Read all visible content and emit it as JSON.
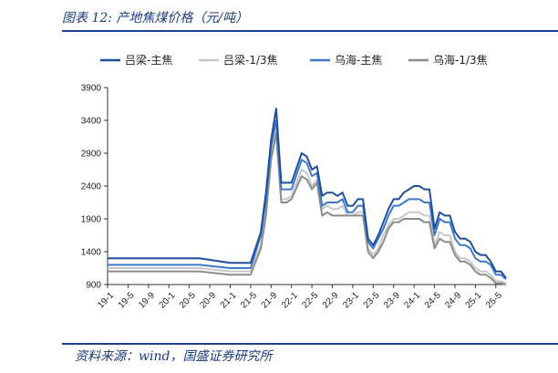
{
  "header": {
    "title": "图表 12:  产地焦煤价格（元/吨）"
  },
  "footer": {
    "source": "资料来源：wind，国盛证券研究所"
  },
  "chart_data": {
    "type": "line",
    "title": "",
    "xlabel": "",
    "ylabel": "",
    "ylim": [
      900,
      3900
    ],
    "yticks": [
      900,
      1400,
      1900,
      2400,
      2900,
      3400,
      3900
    ],
    "xlim": [
      "2019-01",
      "2025-07"
    ],
    "xtick_labels": [
      "19-1",
      "19-5",
      "19-9",
      "20-1",
      "20-5",
      "20-9",
      "21-1",
      "21-5",
      "21-9",
      "22-1",
      "22-5",
      "22-9",
      "23-1",
      "23-5",
      "23-9",
      "24-1",
      "24-5",
      "24-9",
      "25-1",
      "25-5"
    ],
    "legend": {
      "position": "top"
    },
    "grid": false,
    "series": [
      {
        "name": "吕梁-主焦",
        "color": "#1f4e9c",
        "x": [
          "2019-01",
          "2020-07",
          "2021-01",
          "2021-05",
          "2021-07",
          "2021-08",
          "2021-09",
          "2021-10",
          "2021-11",
          "2021-12",
          "2022-01",
          "2022-03",
          "2022-04",
          "2022-05",
          "2022-06",
          "2022-07",
          "2022-08",
          "2022-09",
          "2022-10",
          "2022-11",
          "2022-12",
          "2023-01",
          "2023-02",
          "2023-03",
          "2023-04",
          "2023-05",
          "2023-06",
          "2023-07",
          "2023-08",
          "2023-09",
          "2023-10",
          "2023-11",
          "2023-12",
          "2024-01",
          "2024-02",
          "2024-03",
          "2024-04",
          "2024-05",
          "2024-06",
          "2024-07",
          "2024-08",
          "2024-09",
          "2024-10",
          "2024-11",
          "2024-12",
          "2025-01",
          "2025-02",
          "2025-03",
          "2025-04",
          "2025-05",
          "2025-06",
          "2025-07"
        ],
        "values": [
          1300,
          1300,
          1230,
          1230,
          1700,
          2300,
          3100,
          3580,
          2450,
          2450,
          2450,
          2900,
          2850,
          2650,
          2700,
          2250,
          2300,
          2300,
          2250,
          2300,
          2100,
          2100,
          2200,
          2200,
          1600,
          1500,
          1650,
          1850,
          2050,
          2200,
          2200,
          2300,
          2350,
          2400,
          2400,
          2350,
          2350,
          1750,
          2000,
          1950,
          1950,
          1700,
          1600,
          1600,
          1550,
          1400,
          1350,
          1350,
          1250,
          1100,
          1100,
          1000
        ]
      },
      {
        "name": "吕梁-1/3焦",
        "color": "#c8c8c8",
        "x": [
          "2019-01",
          "2020-07",
          "2021-01",
          "2021-05",
          "2021-07",
          "2021-08",
          "2021-09",
          "2021-10",
          "2021-11",
          "2021-12",
          "2022-01",
          "2022-03",
          "2022-04",
          "2022-05",
          "2022-06",
          "2022-07",
          "2022-08",
          "2022-09",
          "2022-10",
          "2022-11",
          "2022-12",
          "2023-01",
          "2023-02",
          "2023-03",
          "2023-04",
          "2023-05",
          "2023-06",
          "2023-07",
          "2023-08",
          "2023-09",
          "2023-10",
          "2023-11",
          "2023-12",
          "2024-01",
          "2024-02",
          "2024-03",
          "2024-04",
          "2024-05",
          "2024-06",
          "2024-07",
          "2024-08",
          "2024-09",
          "2024-10",
          "2024-11",
          "2024-12",
          "2025-01",
          "2025-02",
          "2025-03",
          "2025-04",
          "2025-05",
          "2025-06",
          "2025-07"
        ],
        "values": [
          1150,
          1150,
          1100,
          1100,
          1500,
          2000,
          2900,
          3350,
          2200,
          2200,
          2250,
          2650,
          2600,
          2400,
          2500,
          2050,
          2100,
          2050,
          2050,
          2100,
          1950,
          1950,
          2000,
          2000,
          1450,
          1350,
          1450,
          1650,
          1800,
          1900,
          1900,
          1950,
          2000,
          2000,
          2000,
          1950,
          1950,
          1500,
          1700,
          1650,
          1650,
          1400,
          1300,
          1300,
          1250,
          1150,
          1100,
          1100,
          1050,
          950,
          950,
          920
        ]
      },
      {
        "name": "乌海-主焦",
        "color": "#3e79c8",
        "x": [
          "2019-01",
          "2020-07",
          "2021-01",
          "2021-05",
          "2021-07",
          "2021-08",
          "2021-09",
          "2021-10",
          "2021-11",
          "2021-12",
          "2022-01",
          "2022-03",
          "2022-04",
          "2022-05",
          "2022-06",
          "2022-07",
          "2022-08",
          "2022-09",
          "2022-10",
          "2022-11",
          "2022-12",
          "2023-01",
          "2023-02",
          "2023-03",
          "2023-04",
          "2023-05",
          "2023-06",
          "2023-07",
          "2023-08",
          "2023-09",
          "2023-10",
          "2023-11",
          "2023-12",
          "2024-01",
          "2024-02",
          "2024-03",
          "2024-04",
          "2024-05",
          "2024-06",
          "2024-07",
          "2024-08",
          "2024-09",
          "2024-10",
          "2024-11",
          "2024-12",
          "2025-01",
          "2025-02",
          "2025-03",
          "2025-04",
          "2025-05",
          "2025-06",
          "2025-07"
        ],
        "values": [
          1200,
          1200,
          1150,
          1150,
          1650,
          2200,
          3000,
          3400,
          2350,
          2350,
          2350,
          2800,
          2750,
          2550,
          2600,
          2100,
          2150,
          2150,
          2150,
          2200,
          2000,
          2000,
          2100,
          2100,
          1550,
          1450,
          1600,
          1750,
          1950,
          2100,
          2100,
          2150,
          2200,
          2200,
          2200,
          2150,
          2150,
          1650,
          1900,
          1850,
          1850,
          1600,
          1500,
          1500,
          1450,
          1300,
          1250,
          1250,
          1200,
          1050,
          1050,
          980
        ]
      },
      {
        "name": "乌海-1/3焦",
        "color": "#8c8c8c",
        "x": [
          "2019-01",
          "2020-07",
          "2021-01",
          "2021-05",
          "2021-07",
          "2021-08",
          "2021-09",
          "2021-10",
          "2021-11",
          "2021-12",
          "2022-01",
          "2022-03",
          "2022-04",
          "2022-05",
          "2022-06",
          "2022-07",
          "2022-08",
          "2022-09",
          "2022-10",
          "2022-11",
          "2022-12",
          "2023-01",
          "2023-02",
          "2023-03",
          "2023-04",
          "2023-05",
          "2023-06",
          "2023-07",
          "2023-08",
          "2023-09",
          "2023-10",
          "2023-11",
          "2023-12",
          "2024-01",
          "2024-02",
          "2024-03",
          "2024-04",
          "2024-05",
          "2024-06",
          "2024-07",
          "2024-08",
          "2024-09",
          "2024-10",
          "2024-11",
          "2024-12",
          "2025-01",
          "2025-02",
          "2025-03",
          "2025-04",
          "2025-05",
          "2025-06",
          "2025-07"
        ],
        "values": [
          1100,
          1100,
          1050,
          1050,
          1450,
          1950,
          2800,
          3200,
          2150,
          2150,
          2200,
          2550,
          2500,
          2350,
          2450,
          1950,
          2000,
          1950,
          1950,
          1950,
          1950,
          1950,
          1950,
          1950,
          1400,
          1300,
          1400,
          1550,
          1750,
          1850,
          1850,
          1900,
          1900,
          1900,
          1900,
          1850,
          1850,
          1450,
          1600,
          1550,
          1550,
          1350,
          1250,
          1250,
          1200,
          1100,
          1050,
          1050,
          1000,
          920,
          920,
          900
        ]
      }
    ]
  }
}
